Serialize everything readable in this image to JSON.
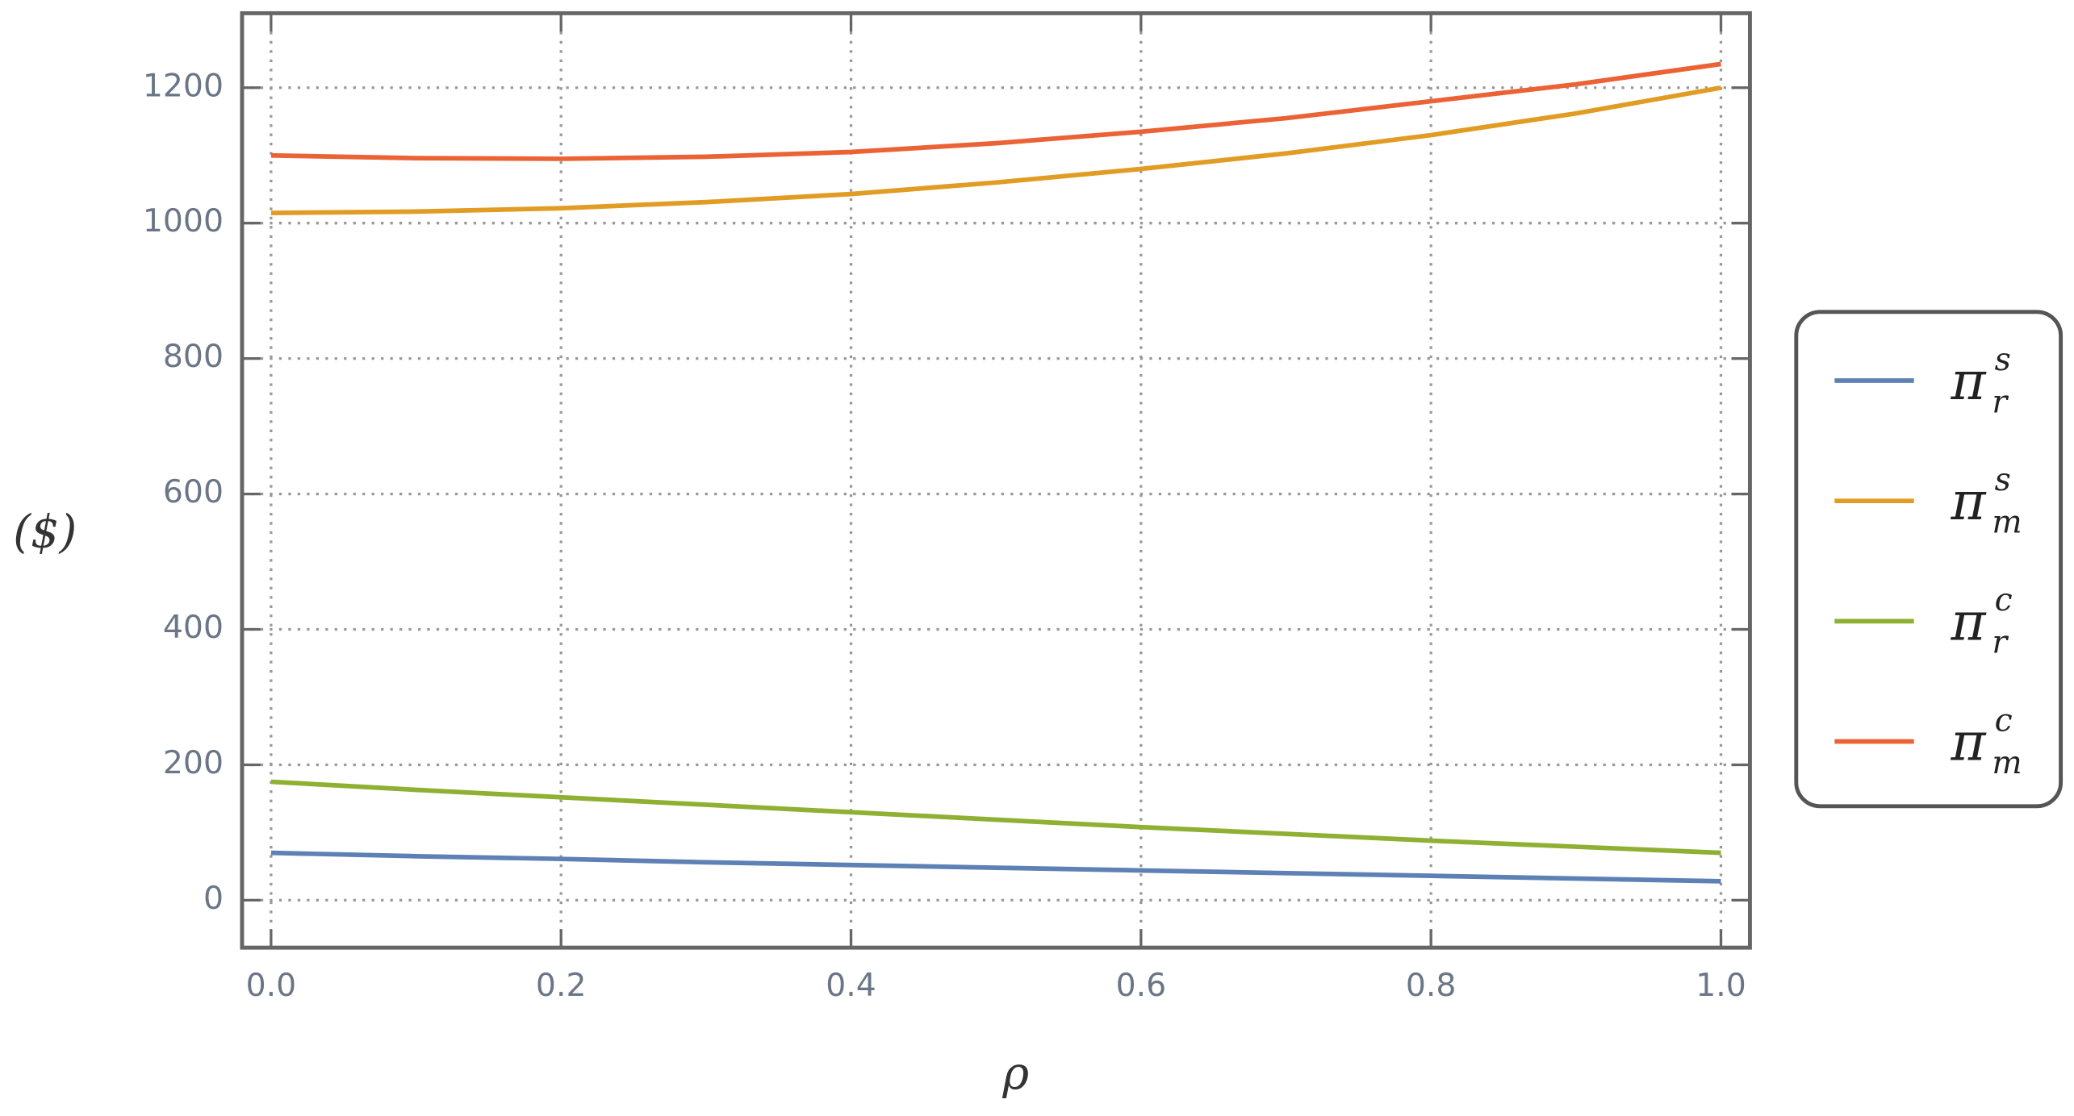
{
  "chart_data": {
    "type": "line",
    "x_label": "ρ",
    "y_label": "($)",
    "x": [
      0.0,
      0.1,
      0.2,
      0.3,
      0.4,
      0.5,
      0.6,
      0.7,
      0.8,
      0.9,
      1.0
    ],
    "series": [
      {
        "name": {
          "base": "π",
          "sub": "r",
          "sup": "s"
        },
        "color": "#5e81b5",
        "values": [
          70,
          65,
          61,
          56,
          52,
          48,
          44,
          40,
          36,
          32,
          28
        ]
      },
      {
        "name": {
          "base": "π",
          "sub": "m",
          "sup": "s"
        },
        "color": "#e19c24",
        "values": [
          1015,
          1017,
          1022,
          1031,
          1043,
          1060,
          1080,
          1103,
          1130,
          1162,
          1200
        ]
      },
      {
        "name": {
          "base": "π",
          "sub": "r",
          "sup": "c"
        },
        "color": "#8fb032",
        "values": [
          175,
          163,
          152,
          141,
          130,
          119,
          108,
          98,
          88,
          79,
          70
        ]
      },
      {
        "name": {
          "base": "π",
          "sub": "m",
          "sup": "c"
        },
        "color": "#eb6235",
        "values": [
          1100,
          1096,
          1095,
          1098,
          1105,
          1118,
          1135,
          1155,
          1180,
          1205,
          1235
        ]
      }
    ],
    "xlim": [
      -0.02,
      1.02
    ],
    "ylim": [
      -70,
      1310
    ],
    "xticks": [
      {
        "value": 0,
        "label": "0.0"
      },
      0.2,
      0.4,
      0.6,
      0.8,
      {
        "value": 1,
        "label": "1.0"
      }
    ],
    "yticks": [
      0,
      200,
      400,
      600,
      800,
      1000,
      1200
    ],
    "grid": true,
    "legend": "right"
  }
}
